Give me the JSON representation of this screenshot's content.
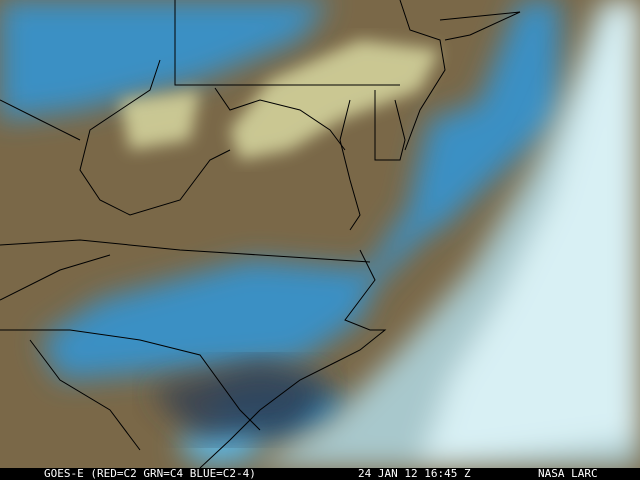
{
  "caption": {
    "satellite": "GOES-E (RED=C2 GRN=C4 BLUE=C2-4)",
    "datetime": "24 JAN 12 16:45 Z",
    "source": "NASA LARC"
  },
  "colors": {
    "land": "#7a6848",
    "low_cloud_blue": "#3a90c4",
    "high_cloud_white": "#d8f0f4",
    "mid_cloud_yellow": "#d8d8a0",
    "boundary": "#000000"
  }
}
